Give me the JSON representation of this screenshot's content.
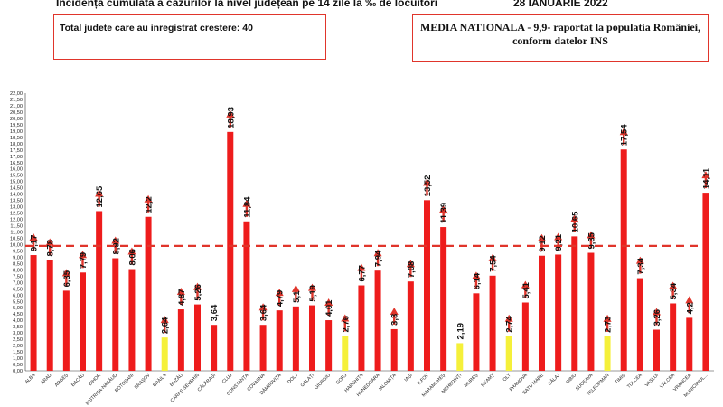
{
  "header": {
    "title": "Incidența cumulată a cazurilor la nivel județean pe 14 zile la ‰ de locuitori",
    "date": "28 IANUARIE 2022"
  },
  "info_left": {
    "text": "Total judete care au inregistrat crestere: 40"
  },
  "info_right": {
    "line1": "MEDIA NATIONALA - 9,9-  raportat la populatia României,",
    "line2": "conform datelor INS"
  },
  "chart_data": {
    "type": "bar",
    "title": "Incidența cumulată a cazurilor la nivel județean pe 14 zile la ‰ de locuitori",
    "ylim": [
      0,
      22
    ],
    "ytick_step": 0.5,
    "reference_line": 9.9,
    "colors": {
      "bar": "#ee1c1c",
      "highlight": "#f5f03a",
      "reference": "#e0352b",
      "arrow": "#e0352b"
    },
    "categories": [
      "ALBA",
      "ARAD",
      "ARGEȘ",
      "BACĂU",
      "BIHOR",
      "BISTRIȚA-NĂSĂUD",
      "BOTOȘANI",
      "BRAȘOV",
      "BRĂILA",
      "BUZĂU",
      "CARAȘ-SEVERIN",
      "CĂLĂRAȘI",
      "CLUJ",
      "CONSTANȚA",
      "COVASNA",
      "DÂMBOVIȚA",
      "DOLJ",
      "GALAȚI",
      "GIURGIU",
      "GORJ",
      "HARGHITA",
      "HUNEDOARA",
      "IALOMIȚA",
      "IAȘI",
      "ILFOV",
      "MARAMUREȘ",
      "MEHEDINȚI",
      "MUREȘ",
      "NEAMȚ",
      "OLT",
      "PRAHOVA",
      "SATU MARE",
      "SĂLAJ",
      "SIBIU",
      "SUCEAVA",
      "TELEORMAN",
      "TIMIȘ",
      "TULCEA",
      "VASLUI",
      "VÂLCEA",
      "VRANCEA",
      "MUNICIPIUL..."
    ],
    "values": [
      9.17,
      8.78,
      6.35,
      7.79,
      12.65,
      8.92,
      8.06,
      12.2,
      2.64,
      4.87,
      5.26,
      3.64,
      18.93,
      11.84,
      3.64,
      4.79,
      5.1,
      5.19,
      4.01,
      2.76,
      6.77,
      7.94,
      3.3,
      7.08,
      13.52,
      11.39,
      2.19,
      6.14,
      7.54,
      2.74,
      5.41,
      9.12,
      9.21,
      10.65,
      9.35,
      2.73,
      17.54,
      7.34,
      3.26,
      5.34,
      4.2,
      14.11
    ],
    "labels": [
      "9,17",
      "8,78",
      "6,35",
      "7,79",
      "12,65",
      "8,92",
      "8,06",
      "12,2",
      "2,64",
      "4,87",
      "5,26",
      "3,64",
      "18,93",
      "11,84",
      "3,64",
      "4,79",
      "5,1",
      "5,19",
      "4,01",
      "2,76",
      "6,77",
      "7,94",
      "3,3",
      "7,08",
      "13,52",
      "11,39",
      "2,19",
      "6,14",
      "7,54",
      "2,74",
      "5,41",
      "9,12",
      "9,21",
      "10,65",
      "9,35",
      "2,73",
      "17,54",
      "7,34",
      "3,26",
      "5,34",
      "4,2",
      "14,11"
    ],
    "highlighted": [
      false,
      false,
      false,
      false,
      false,
      false,
      false,
      false,
      true,
      false,
      false,
      false,
      false,
      false,
      false,
      false,
      false,
      false,
      false,
      true,
      false,
      false,
      false,
      false,
      false,
      false,
      true,
      false,
      false,
      true,
      false,
      false,
      false,
      false,
      false,
      true,
      false,
      false,
      false,
      false,
      false,
      false
    ],
    "arrows": [
      true,
      true,
      true,
      true,
      true,
      true,
      true,
      true,
      true,
      true,
      true,
      false,
      true,
      true,
      true,
      true,
      true,
      true,
      true,
      true,
      true,
      true,
      true,
      true,
      true,
      true,
      false,
      true,
      true,
      true,
      true,
      true,
      true,
      true,
      true,
      true,
      true,
      true,
      true,
      true,
      true,
      true
    ]
  }
}
